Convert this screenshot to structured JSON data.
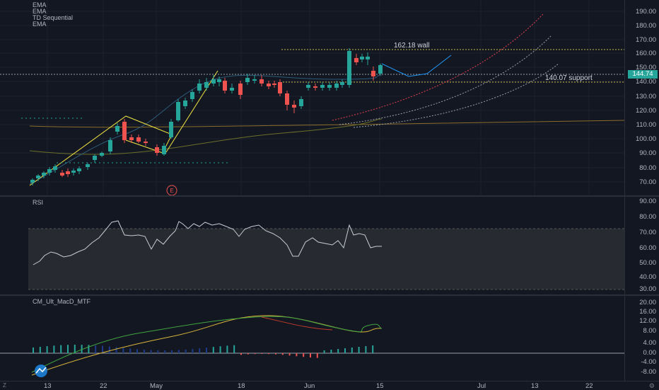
{
  "price_pane": {
    "legend": [
      "EMA",
      "EMA",
      "TD Sequential",
      "EMA"
    ],
    "annotations": {
      "wall": "162.18 wall",
      "support": "140.07 support"
    },
    "earnings_marker": "E",
    "current_price": "144.74",
    "axis_ticks": [
      "190.00",
      "180.00",
      "170.00",
      "160.00",
      "150.00",
      "140.00",
      "130.00",
      "120.00",
      "110.00",
      "100.00",
      "90.00",
      "80.00",
      "70.00"
    ]
  },
  "rsi_pane": {
    "title": "RSI",
    "axis_ticks": [
      "90.00",
      "80.00",
      "70.00",
      "60.00",
      "50.00",
      "40.00",
      "30.00"
    ]
  },
  "macd_pane": {
    "title": "CM_Ult_MacD_MTF",
    "axis_ticks": [
      "20.00",
      "16.00",
      "12.00",
      "8.00",
      "4.00",
      "0.00",
      "-4.00",
      "-8.00"
    ]
  },
  "time_axis": {
    "labels": [
      "13",
      "22",
      "May",
      "18",
      "Jun",
      "15",
      "Jul",
      "13",
      "22"
    ],
    "scale_button": "Z"
  },
  "colors": {
    "up": "#26a69a",
    "down": "#ef5350",
    "wedge": "#f0e442",
    "projection": "#2196f3",
    "background": "#131722"
  }
}
